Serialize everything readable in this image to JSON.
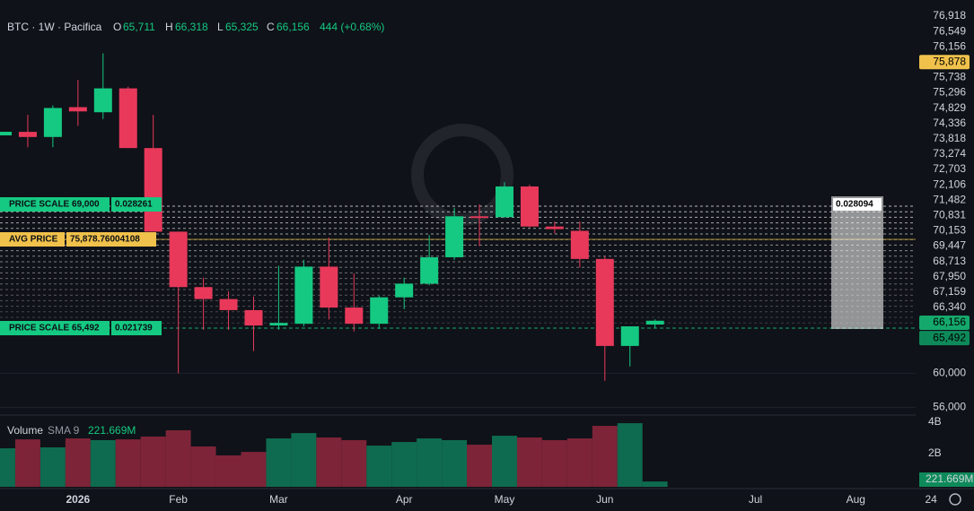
{
  "header": {
    "symbol": "BTC · 1W · Pacifica",
    "o_key": "O",
    "o": "65,711",
    "h_key": "H",
    "h": "66,318",
    "l_key": "L",
    "l": "65,325",
    "c_key": "C",
    "c": "66,156",
    "change": "444 (+0.68%)"
  },
  "chart_data": {
    "type": "candlestick",
    "categories": [
      null,
      null,
      null,
      "2026",
      null,
      null,
      null,
      "Feb",
      null,
      null,
      null,
      "Mar",
      null,
      null,
      null,
      null,
      "Apr",
      null,
      null,
      null,
      "May",
      null,
      null,
      null,
      "Jun",
      null,
      null,
      null,
      null,
      null,
      "Jul",
      null,
      null,
      null,
      "Aug",
      null,
      null,
      "24"
    ],
    "open": [
      87890,
      88300,
      87700,
      91200,
      90600,
      93400,
      86400,
      76600,
      70100,
      68700,
      67400,
      65600,
      65800,
      72500,
      67700,
      65800,
      68900,
      70500,
      73600,
      78400,
      78300,
      81900,
      77200,
      76700,
      73400,
      63200,
      65711,
      null,
      null,
      null,
      null,
      null,
      null,
      null,
      null,
      null,
      null,
      null
    ],
    "high": [
      88310,
      90300,
      91400,
      94400,
      97500,
      93600,
      90300,
      76600,
      71200,
      69600,
      69000,
      72600,
      73300,
      75900,
      71700,
      69100,
      71200,
      76200,
      79400,
      79800,
      82400,
      82100,
      77800,
      77800,
      73700,
      65500,
      66318,
      null,
      null,
      null,
      null,
      null,
      null,
      null,
      null,
      null,
      null,
      null
    ],
    "low": [
      87890,
      86500,
      86500,
      89000,
      89800,
      86400,
      76600,
      60000,
      65100,
      65100,
      62600,
      65100,
      65500,
      66300,
      64900,
      65200,
      67500,
      70300,
      73300,
      74900,
      78200,
      77100,
      76400,
      72400,
      59100,
      60800,
      65325,
      null,
      null,
      null,
      null,
      null,
      null,
      null,
      null,
      null,
      null,
      null
    ],
    "close": [
      88310,
      87700,
      91100,
      90700,
      93400,
      86400,
      76600,
      70100,
      68700,
      67400,
      65600,
      65900,
      72500,
      67700,
      65800,
      68900,
      70500,
      73600,
      78400,
      78200,
      81900,
      77200,
      76900,
      73400,
      63200,
      65500,
      66156,
      null,
      null,
      null,
      null,
      null,
      null,
      null,
      null,
      null,
      null,
      null
    ],
    "volume": [
      2340000000,
      2910000000,
      2400000000,
      2970000000,
      2860000000,
      2910000000,
      3090000000,
      3490000000,
      2460000000,
      1890000000,
      2110000000,
      2970000000,
      3310000000,
      3030000000,
      2860000000,
      2510000000,
      2740000000,
      2970000000,
      2860000000,
      2570000000,
      3140000000,
      3030000000,
      2860000000,
      2970000000,
      3770000000,
      3940000000,
      221669000,
      null,
      null,
      null,
      null,
      null,
      null,
      null,
      null,
      null,
      null,
      null
    ],
    "up_color": "#15c982",
    "down_color": "#e8395b",
    "vol_up_color": "#0f6b4f",
    "vol_down_color": "#7d2438",
    "ylim": [
      55200,
      102500
    ],
    "yticks": [
      {
        "value": 60000,
        "label": "60,000"
      },
      {
        "value": 56000,
        "label": "56,000"
      }
    ],
    "volume_lim": [
      0,
      4500000000
    ],
    "volume_ticks": [
      {
        "value": 4000000000,
        "label": "4B"
      },
      {
        "value": 2000000000,
        "label": "2B"
      }
    ],
    "volume_legend": {
      "name": "Volume",
      "sma": "SMA 9",
      "value": "221.669M"
    },
    "volume_badge": "221.669M",
    "price_labels": [
      {
        "text": "76,918"
      },
      {
        "text": "76,549"
      },
      {
        "text": "76,156"
      },
      {
        "text": "75,878",
        "bg": "#f0c14b"
      },
      {
        "text": "75,738"
      },
      {
        "text": "75,296"
      },
      {
        "text": "74,829"
      },
      {
        "text": "74,336"
      },
      {
        "text": "73,818"
      },
      {
        "text": "73,274"
      },
      {
        "text": "72,703"
      },
      {
        "text": "72,106"
      },
      {
        "text": "71,482"
      },
      {
        "text": "70,831"
      },
      {
        "text": "70,153"
      },
      {
        "text": "69,447"
      },
      {
        "text": "68,713"
      },
      {
        "text": "67,950"
      },
      {
        "text": "67,159"
      },
      {
        "text": "66,340"
      },
      {
        "text": "66,156",
        "bg": "#15a86c"
      },
      {
        "text": "65,492",
        "bg": "#0e8a5a"
      }
    ],
    "overlays": [
      {
        "name": "PRICE SCALE 69,000",
        "value": "0.028261"
      },
      {
        "name": "AVG PRICE",
        "value": "75,878.76004108"
      },
      {
        "name": "PRICE SCALE 65,492",
        "value": "0.021739"
      }
    ],
    "overlay_box": "0.028094"
  }
}
